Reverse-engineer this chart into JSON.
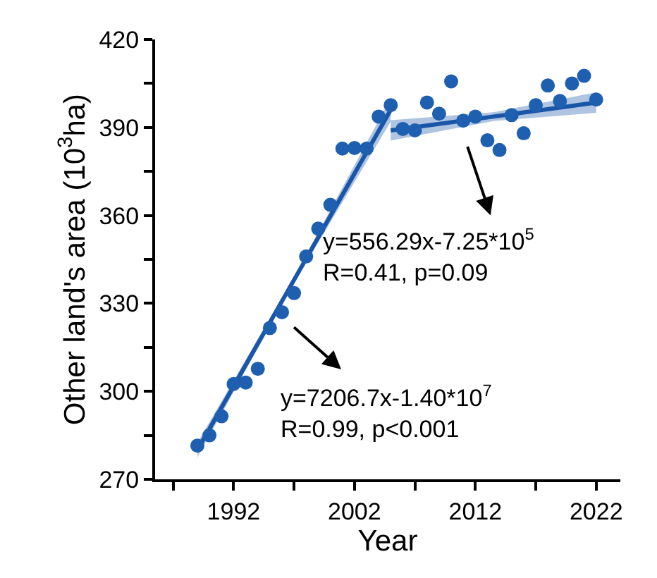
{
  "chart_data": {
    "type": "scatter",
    "xlabel": "Year",
    "ylabel": "Other land's area (10$^{3}$ha)",
    "xlim": [
      1985.5,
      2024
    ],
    "ylim": [
      270,
      420
    ],
    "xticks": [
      {
        "value": 1987,
        "label": null
      },
      1992,
      {
        "value": 1997,
        "label": null
      },
      2002,
      {
        "value": 2007,
        "label": null
      },
      2012,
      {
        "value": 2017,
        "label": null
      },
      2022
    ],
    "yticks": [
      270,
      {
        "value": 285,
        "label": null
      },
      300,
      {
        "value": 315,
        "label": null
      },
      330,
      {
        "value": 345,
        "label": null
      },
      360,
      {
        "value": 375,
        "label": null
      },
      390,
      {
        "value": 405,
        "label": null
      },
      420
    ],
    "marker": "circle",
    "series": [
      {
        "type": "line",
        "marker": "none",
        "color": "#1a56a8",
        "x": [
          1989,
          1997,
          2005
        ],
        "values": [
          280,
          338,
          396
        ],
        "lower": [
          277.5,
          337,
          392
        ],
        "upper": [
          282.5,
          339,
          400
        ]
      },
      {
        "type": "line",
        "marker": "none",
        "color": "#1a56a8",
        "x": [
          2005,
          2013.5,
          2022
        ],
        "values": [
          389,
          393.7,
          398.5
        ],
        "lower": [
          385.5,
          392.2,
          395
        ],
        "upper": [
          392.5,
          395.2,
          402
        ]
      },
      {
        "color": "#1f5fb0",
        "x": [
          1989,
          1990,
          1991,
          1992,
          1993,
          1994,
          1995,
          1996,
          1997,
          1998,
          1999,
          2000,
          2001,
          2002,
          2003,
          2004,
          2005,
          2006,
          2007,
          2008,
          2009,
          2010,
          2011,
          2012,
          2013,
          2014,
          2015,
          2016,
          2017,
          2018,
          2019,
          2020,
          2021,
          2022
        ],
        "values": [
          281.5,
          285,
          291.5,
          302.5,
          303,
          307.7,
          321.6,
          327,
          333.5,
          346,
          355.5,
          363.6,
          382.8,
          383,
          382.8,
          393.7,
          397.6,
          389.5,
          389,
          398.5,
          394.7,
          405.7,
          392.3,
          393.7,
          385.6,
          382.3,
          394.2,
          388,
          397.6,
          404.3,
          399,
          405,
          407.6,
          399.5
        ]
      }
    ],
    "annotations": [
      "y=556.29x-7.25*10$^{5}$\nR=0.41, p=0.09",
      "y=7206.7x-1.40*10$^{7}$\nR=0.99, p<0.001"
    ]
  }
}
